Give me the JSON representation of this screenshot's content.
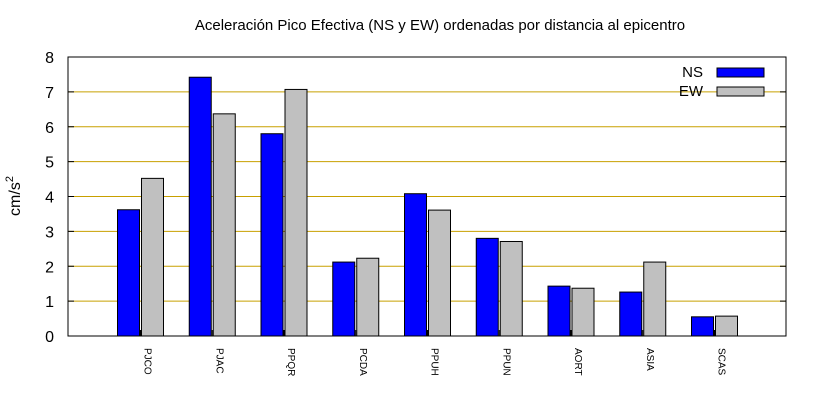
{
  "chart_data": {
    "type": "bar",
    "title": "Aceleración Pico Efectiva (NS y EW) ordenadas por distancia al epicentro",
    "xlabel": "",
    "ylabel_base": "cm/s",
    "ylabel_exp": "2",
    "ylim": [
      0,
      8
    ],
    "yticks": [
      "0",
      "1",
      "2",
      "3",
      "4",
      "5",
      "6",
      "7",
      "8"
    ],
    "grid": true,
    "legend_position": "top-right",
    "categories": [
      "PJCO",
      "PJAC",
      "PPQR",
      "PCDA",
      "PPUH",
      "PPUN",
      "AORT",
      "ASIA",
      "SCAS"
    ],
    "series": [
      {
        "name": "NS",
        "color": "#0000ff",
        "values": [
          3.62,
          7.42,
          5.8,
          2.12,
          4.08,
          2.8,
          1.43,
          1.26,
          0.55
        ]
      },
      {
        "name": "EW",
        "color": "#c0c0c0",
        "values": [
          4.52,
          6.37,
          7.07,
          2.23,
          3.61,
          2.71,
          1.37,
          2.12,
          0.57
        ]
      }
    ],
    "gridline_color": "#c8a000"
  }
}
